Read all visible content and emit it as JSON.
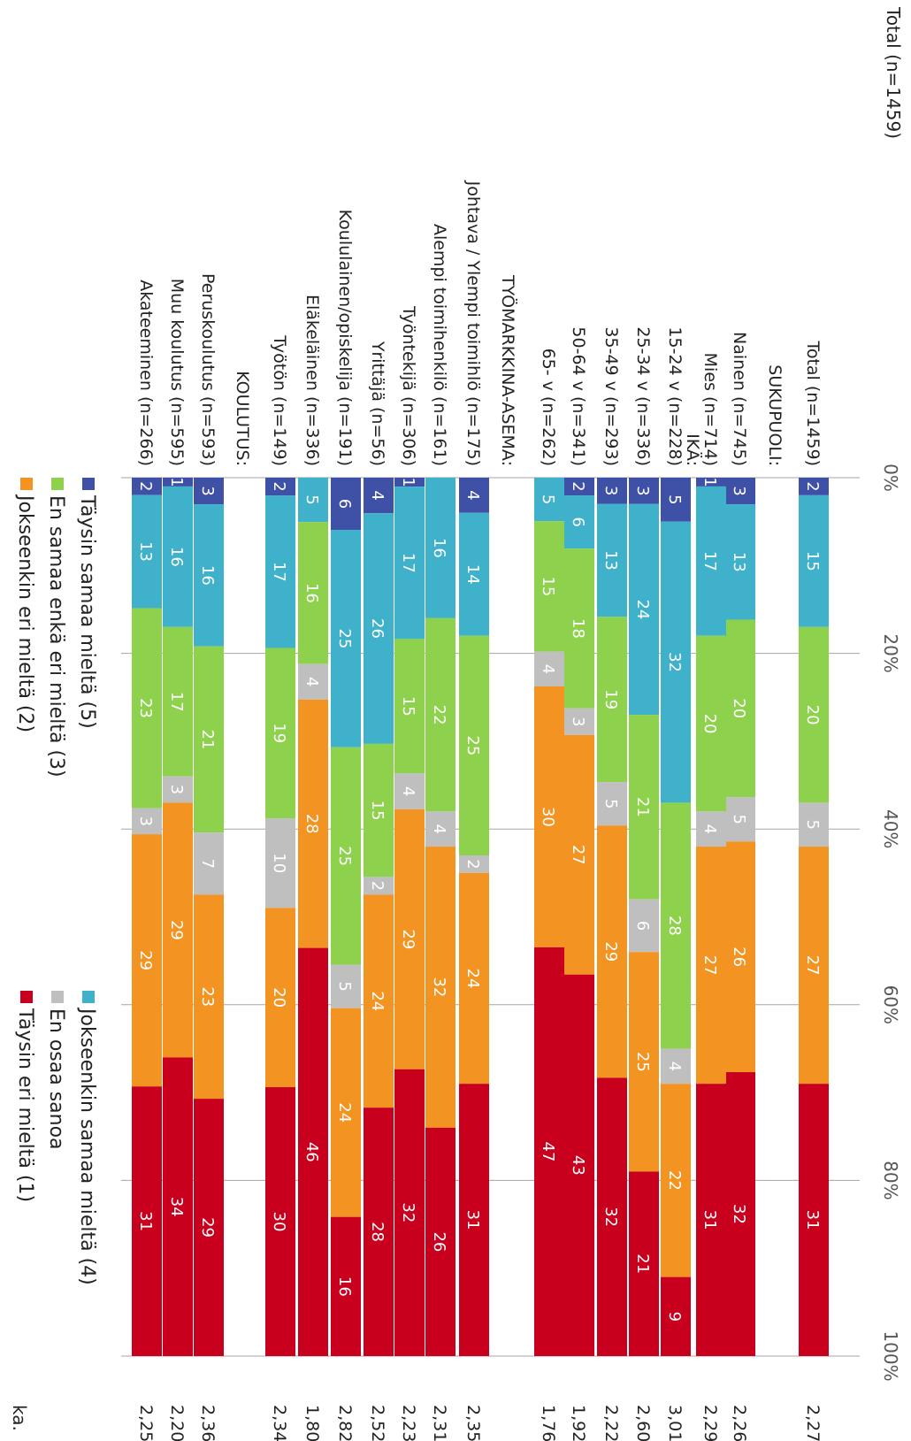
{
  "chart_data": {
    "type": "bar",
    "orientation": "horizontal-stacked-percent",
    "title": "Total (n=1459)",
    "avg_header": "ka.",
    "xticks": [
      "0%",
      "20%",
      "40%",
      "60%",
      "80%",
      "100%"
    ],
    "series": [
      {
        "name": "Täysin samaa mieltä (5)",
        "color": "#3f51a7"
      },
      {
        "name": "Jokseenkin samaa mieltä (4)",
        "color": "#3fb1cb"
      },
      {
        "name": "En samaa enkä eri mieltä (3)",
        "color": "#8ed14c"
      },
      {
        "name": "En osaa sanoa",
        "color": "#bfbfbf"
      },
      {
        "name": "Jokseenkin eri mieltä (2)",
        "color": "#f39321"
      },
      {
        "name": "Täysin eri mieltä (1)",
        "color": "#c8001e"
      }
    ],
    "rows": [
      {
        "label": "Total (n=1459)",
        "values": [
          2,
          15,
          20,
          5,
          27,
          31
        ],
        "avg": "2,27"
      },
      {
        "label": "SUKUPUOLI:",
        "header": true
      },
      {
        "label": "Nainen (n=745)",
        "values": [
          3,
          13,
          20,
          5,
          26,
          32
        ],
        "avg": "2,26"
      },
      {
        "label": "Mies (n=714)",
        "values": [
          1,
          17,
          20,
          4,
          27,
          31
        ],
        "avg": "2,29"
      },
      {
        "label": "IKÄ:",
        "header": true
      },
      {
        "label": "15-24 v (n=228)",
        "values": [
          5,
          32,
          28,
          4,
          22,
          9
        ],
        "avg": "3,01"
      },
      {
        "label": "25-34 v (n=336)",
        "values": [
          3,
          24,
          21,
          6,
          25,
          21
        ],
        "avg": "2,60"
      },
      {
        "label": "35-49 v (n=293)",
        "values": [
          3,
          13,
          19,
          5,
          29,
          32
        ],
        "avg": "2,22"
      },
      {
        "label": "50-64 v (n=341)",
        "values": [
          2,
          6,
          18,
          3,
          27,
          43
        ],
        "avg": "1,92"
      },
      {
        "label": "65- v (n=262)",
        "values": [
          0,
          5,
          15,
          4,
          30,
          47
        ],
        "avg": "1,76"
      },
      {
        "label": "TYÖMARKKINA-ASEMA:",
        "header": true
      },
      {
        "label": "Johtava / Ylempi toimihlö (n=175)",
        "values": [
          4,
          14,
          25,
          2,
          24,
          31
        ],
        "avg": "2,35"
      },
      {
        "label": "Alempi toimihenkilö (n=161)",
        "values": [
          0,
          16,
          22,
          4,
          32,
          26
        ],
        "avg": "2,31"
      },
      {
        "label": "Työntekijä (n=306)",
        "values": [
          1,
          17,
          15,
          4,
          29,
          32
        ],
        "avg": "2,23"
      },
      {
        "label": "Yrittäjä (n=56)",
        "values": [
          4,
          26,
          15,
          2,
          24,
          28
        ],
        "avg": "2,52"
      },
      {
        "label": "Koululainen/opiskelija (n=191)",
        "values": [
          6,
          25,
          25,
          5,
          24,
          16
        ],
        "avg": "2,82"
      },
      {
        "label": "Eläkeläinen (n=336)",
        "values": [
          0,
          5,
          16,
          4,
          28,
          46
        ],
        "avg": "1,80"
      },
      {
        "label": "Työtön (n=149)",
        "values": [
          2,
          17,
          19,
          10,
          20,
          30
        ],
        "avg": "2,34"
      },
      {
        "label": "KOULUTUS:",
        "header": true
      },
      {
        "label": "Peruskoulutus (n=593)",
        "values": [
          3,
          16,
          21,
          7,
          23,
          29
        ],
        "avg": "2,36"
      },
      {
        "label": "Muu koulutus (n=595)",
        "values": [
          1,
          16,
          17,
          3,
          29,
          34
        ],
        "avg": "2,20"
      },
      {
        "label": "Akateeminen (n=266)",
        "values": [
          2,
          13,
          23,
          3,
          29,
          31
        ],
        "avg": "2,25"
      }
    ]
  }
}
